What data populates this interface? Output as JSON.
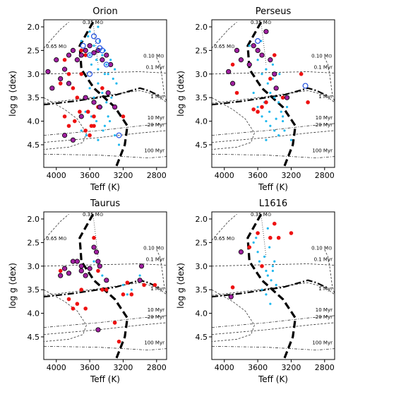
{
  "chart_data": [
    {
      "type": "scatter",
      "title": "Orion",
      "xlabel": "Teff (K)",
      "ylabel": "log g (dex)",
      "xlim": [
        4150,
        2680
      ],
      "ylim": [
        1.85,
        4.98
      ],
      "xticks": [
        4000,
        3600,
        3200,
        2800
      ],
      "yticks": [
        {
          "value": 2,
          "label": "2.0"
        },
        2.5,
        {
          "value": 3,
          "label": "3.0"
        },
        3.5,
        {
          "value": 4,
          "label": "4.0"
        },
        4.5
      ],
      "series": [
        {
          "color": "#1fb8ee",
          "marker": "dot",
          "x": [
            3700,
            3650,
            3620,
            3600,
            3580,
            3550,
            3520,
            3500,
            3480,
            3450,
            3420,
            3400,
            3380,
            3350,
            3320,
            3300,
            3280,
            3600,
            3550,
            3500,
            3450,
            3400,
            3650,
            3580,
            3520,
            3460,
            3420,
            3380,
            3700,
            3640,
            3560,
            3500,
            3440,
            3360,
            3300,
            3250,
            3600,
            3500,
            3420,
            3340
          ],
          "values": [
            2.3,
            2.5,
            2.2,
            2.6,
            2.8,
            2.4,
            2.7,
            2.9,
            2.3,
            2.6,
            2.5,
            2.8,
            3.0,
            2.7,
            3.1,
            2.9,
            3.2,
            3.3,
            3.5,
            3.2,
            3.4,
            3.6,
            3.8,
            3.9,
            4.0,
            3.7,
            4.1,
            3.9,
            4.2,
            4.3,
            4.1,
            4.4,
            4.2,
            4.0,
            4.3,
            4.5,
            2.1,
            2.0,
            3.0,
            3.5
          ]
        },
        {
          "color": "#ee1111",
          "marker": "filled",
          "x": [
            3900,
            3850,
            3800,
            3750,
            3700,
            3650,
            3620,
            3580,
            3550,
            3500,
            3450,
            3900,
            3850,
            3780,
            3720,
            3650,
            3600,
            3550,
            3200,
            3950,
            3700,
            3600
          ],
          "values": [
            2.7,
            3.0,
            3.3,
            3.5,
            2.5,
            2.6,
            3.8,
            4.1,
            3.9,
            3.7,
            3.3,
            3.9,
            4.1,
            4.0,
            3.8,
            4.2,
            4.3,
            4.1,
            3.9,
            3.2,
            3.0,
            2.4
          ]
        },
        {
          "color": "#a020a0",
          "marker": "edged",
          "x": [
            4100,
            4050,
            4000,
            3950,
            3900,
            3850,
            3800,
            3750,
            3700,
            3650,
            3600,
            3550,
            3500,
            3450,
            3400,
            3350,
            3900,
            3800,
            3700,
            3650,
            3550,
            3480,
            3380,
            3300,
            3850
          ],
          "values": [
            2.95,
            3.3,
            2.7,
            3.1,
            2.9,
            2.6,
            2.5,
            2.7,
            2.6,
            2.5,
            2.4,
            2.55,
            2.5,
            2.7,
            2.6,
            2.8,
            4.3,
            4.4,
            3.9,
            3.5,
            3.6,
            3.7,
            3.4,
            3.7,
            3.2
          ]
        },
        {
          "color": "#1f4fe0",
          "marker": "open",
          "x": [
            3550,
            3500,
            3680,
            3600,
            3450,
            3400,
            3600,
            3480,
            3250
          ],
          "values": [
            2.2,
            2.3,
            2.4,
            2.6,
            2.5,
            2.8,
            3.0,
            2.45,
            4.3
          ]
        }
      ]
    },
    {
      "type": "scatter",
      "title": "Perseus",
      "xlabel": "Teff (K)",
      "ylabel": "log g (dex)",
      "xlim": [
        4150,
        2680
      ],
      "ylim": [
        1.85,
        4.98
      ],
      "xticks": [
        4000,
        3600,
        3200,
        2800
      ],
      "yticks": [
        {
          "value": 2,
          "label": "2.0"
        },
        2.5,
        {
          "value": 3,
          "label": "3.0"
        },
        3.5,
        {
          "value": 4,
          "label": "4.0"
        },
        4.5
      ],
      "series": [
        {
          "color": "#1fb8ee",
          "marker": "dot",
          "x": [
            3600,
            3550,
            3500,
            3480,
            3450,
            3420,
            3400,
            3380,
            3350,
            3320,
            3300,
            3250,
            3600,
            3550,
            3500,
            3450,
            3400,
            3350,
            3300,
            3650,
            3520,
            3460,
            3380,
            3280,
            3200,
            3700,
            3560,
            3420,
            3340,
            3500
          ],
          "values": [
            2.7,
            3.0,
            2.9,
            3.2,
            3.4,
            3.1,
            3.5,
            3.3,
            3.6,
            3.8,
            3.9,
            3.7,
            3.7,
            3.9,
            4.0,
            4.1,
            4.2,
            4.3,
            4.0,
            3.4,
            3.6,
            3.8,
            3.95,
            4.2,
            4.4,
            2.4,
            2.3,
            2.8,
            3.0,
            4.4
          ]
        },
        {
          "color": "#ee1111",
          "marker": "filled",
          "x": [
            3900,
            3650,
            3550,
            3500,
            3450,
            3400,
            3850,
            3600,
            3300,
            3080,
            3000
          ],
          "values": [
            2.8,
            3.75,
            3.7,
            3.6,
            3.1,
            2.6,
            3.4,
            3.8,
            3.5,
            3.0,
            3.6
          ]
        },
        {
          "color": "#a020a0",
          "marker": "edged",
          "x": [
            3950,
            3900,
            3850,
            3800,
            3700,
            3650,
            3600,
            3550,
            3500,
            3450,
            3400,
            3380,
            3250
          ],
          "values": [
            2.95,
            3.2,
            2.5,
            2.7,
            2.8,
            2.4,
            2.5,
            2.6,
            2.1,
            2.7,
            3.0,
            3.3,
            3.5
          ]
        },
        {
          "color": "#1f4fe0",
          "marker": "open",
          "x": [
            3600,
            3030
          ],
          "values": [
            2.3,
            3.25
          ]
        }
      ]
    },
    {
      "type": "scatter",
      "title": "Taurus",
      "xlabel": "Teff (K)",
      "ylabel": "log g (dex)",
      "xlim": [
        4150,
        2680
      ],
      "ylim": [
        1.85,
        4.98
      ],
      "xticks": [
        4000,
        3600,
        3200,
        2800
      ],
      "yticks": [
        {
          "value": 2,
          "label": "2.0"
        },
        2.5,
        {
          "value": 3,
          "label": "3.0"
        },
        3.5,
        {
          "value": 4,
          "label": "4.0"
        },
        4.5
      ],
      "series": [
        {
          "color": "#1fb8ee",
          "marker": "dot",
          "x": [
            3550,
            3500,
            3450,
            3200,
            3000,
            3100,
            3150
          ],
          "values": [
            2.9,
            3.1,
            3.2,
            3.4,
            3.2,
            3.5,
            3.6
          ]
        },
        {
          "color": "#ee1111",
          "marker": "filled",
          "x": [
            3950,
            3850,
            3800,
            3750,
            3700,
            3650,
            3550,
            3500,
            3450,
            3400,
            3300,
            3150,
            3100,
            2950,
            3250,
            3200,
            2820
          ],
          "values": [
            3.1,
            3.7,
            3.9,
            3.8,
            3.5,
            3.9,
            2.4,
            3.1,
            3.5,
            3.5,
            4.2,
            3.35,
            3.6,
            3.4,
            4.6,
            3.6,
            3.4
          ]
        },
        {
          "color": "#a020a0",
          "marker": "edged",
          "x": [
            3900,
            3850,
            3800,
            3750,
            3700,
            3700,
            3650,
            3600,
            3550,
            3520,
            3500,
            3480,
            3400,
            3000,
            2980,
            3950,
            3500
          ],
          "values": [
            3.05,
            3.15,
            2.9,
            2.9,
            3.0,
            3.1,
            3.2,
            3.05,
            2.6,
            2.7,
            2.9,
            3.0,
            3.3,
            3.3,
            3.0,
            3.2,
            4.35
          ]
        }
      ]
    },
    {
      "type": "scatter",
      "title": "L1616",
      "xlabel": "Teff (K)",
      "ylabel": "log g (dex)",
      "xlim": [
        4150,
        2680
      ],
      "ylim": [
        1.85,
        4.98
      ],
      "xticks": [
        4000,
        3600,
        3200,
        2800
      ],
      "yticks": [
        {
          "value": 2,
          "label": "2.0"
        },
        2.5,
        {
          "value": 3,
          "label": "3.0"
        },
        3.5,
        {
          "value": 4,
          "label": "4.0"
        },
        4.5
      ],
      "series": [
        {
          "color": "#1fb8ee",
          "marker": "dot",
          "x": [
            3650,
            3600,
            3580,
            3550,
            3520,
            3500,
            3480,
            3460,
            3440,
            3420,
            3400,
            3380,
            3550,
            3500,
            3450,
            3620,
            3480,
            3420
          ],
          "values": [
            2.5,
            2.7,
            2.9,
            3.0,
            2.8,
            3.1,
            3.2,
            2.6,
            3.3,
            3.0,
            2.9,
            3.4,
            3.5,
            3.6,
            3.8,
            2.4,
            2.2,
            3.1
          ]
        },
        {
          "color": "#ee1111",
          "marker": "filled",
          "x": [
            3900,
            3550,
            3600,
            3450,
            3400,
            3350,
            3200,
            3700
          ],
          "values": [
            3.45,
            3.0,
            2.3,
            2.4,
            2.1,
            2.4,
            2.3,
            2.6
          ]
        },
        {
          "color": "#a020a0",
          "marker": "edged",
          "x": [
            3800,
            3920
          ],
          "values": [
            2.7,
            3.65
          ]
        }
      ]
    }
  ],
  "model_curves": [
    {
      "label": "0.65 M⊙",
      "kind": "track",
      "style": "dashed",
      "x": [
        4150,
        4050,
        3950,
        3850
      ],
      "y": [
        2.45,
        2.25,
        2.05,
        1.9
      ]
    },
    {
      "kind": "track",
      "style": "dashed",
      "x": [
        4150,
        3900,
        3750,
        3640,
        3680,
        3850,
        4150
      ],
      "y": [
        3.5,
        3.75,
        3.95,
        4.25,
        4.45,
        4.55,
        4.6
      ]
    },
    {
      "label": "0.35 M⊙",
      "kind": "track",
      "style": "dotted",
      "x": [
        3560,
        3540,
        3520,
        3500
      ],
      "y": [
        1.9,
        2.2,
        2.5,
        2.8
      ]
    },
    {
      "label": "0.10 M⊙",
      "kind": "track",
      "style": "dashed",
      "x": [
        2800,
        2760,
        2740,
        2710,
        2680
      ],
      "y": [
        2.65,
        2.8,
        3.0,
        3.4,
        3.6
      ]
    },
    {
      "label": "0.1 Myr",
      "kind": "isochrone",
      "style": "dashed",
      "x": [
        4150,
        3500,
        3000,
        2680
      ],
      "y": [
        3.0,
        2.97,
        2.95,
        2.98
      ]
    },
    {
      "label": "1 Myr",
      "kind": "isochrone",
      "style": "dashed",
      "x": [
        4150,
        3500,
        3000,
        2800,
        2680
      ],
      "y": [
        3.62,
        3.48,
        3.35,
        3.45,
        3.6
      ]
    },
    {
      "label": "10 Myr",
      "kind": "isochrone",
      "style": "dashdot",
      "x": [
        4150,
        3500,
        3000,
        2680
      ],
      "y": [
        4.3,
        4.2,
        4.1,
        4.05
      ]
    },
    {
      "label": "20 Myr",
      "kind": "isochrone",
      "style": "dashed",
      "x": [
        4150,
        3500,
        3000,
        2680
      ],
      "y": [
        4.45,
        4.35,
        4.25,
        4.2
      ]
    },
    {
      "label": "100 Myr",
      "kind": "isochrone",
      "style": "dashdot",
      "x": [
        4150,
        3500,
        3200,
        2900,
        2680
      ],
      "y": [
        4.7,
        4.72,
        4.75,
        4.78,
        4.75
      ]
    },
    {
      "kind": "boundary",
      "style": "thick-dashed",
      "x": [
        3560,
        3720,
        3700,
        3550,
        3300,
        3150,
        3180,
        3280
      ],
      "y": [
        1.9,
        2.4,
        2.9,
        3.3,
        3.7,
        4.1,
        4.5,
        4.95
      ]
    },
    {
      "kind": "boundary",
      "style": "thick-dashdot",
      "x": [
        4150,
        3800,
        3500,
        3300,
        3100,
        3000,
        2900,
        2780
      ],
      "y": [
        3.65,
        3.58,
        3.5,
        3.45,
        3.35,
        3.3,
        3.35,
        3.45
      ]
    }
  ]
}
